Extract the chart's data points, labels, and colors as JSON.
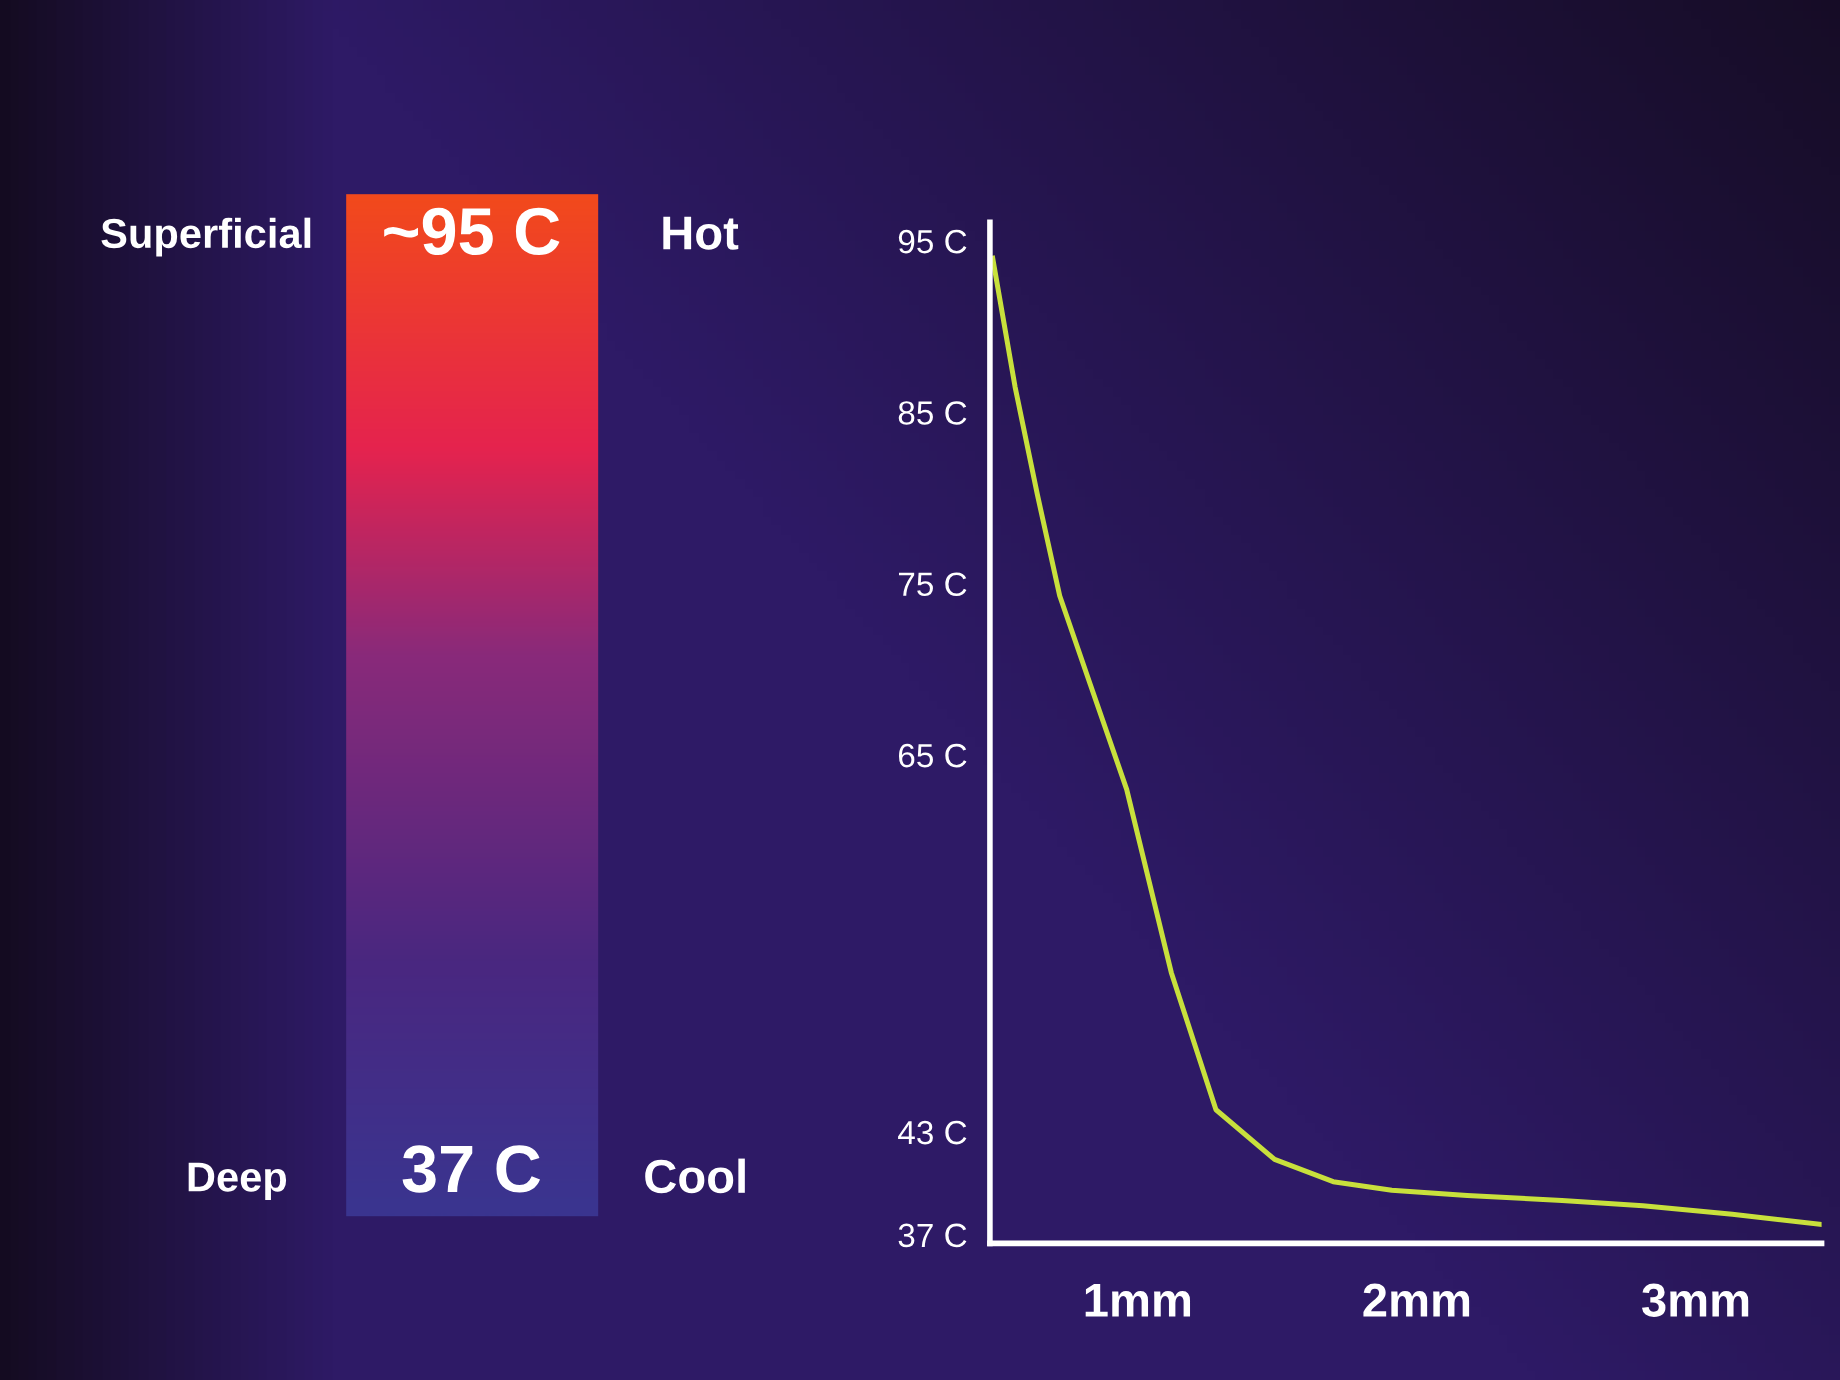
{
  "chart_data": [
    {
      "type": "other",
      "annotations": [
        "Superficial",
        "~95 C",
        "Hot",
        "Deep",
        "37 C",
        "Cool"
      ]
    },
    {
      "type": "line",
      "xlim": [
        0.47,
        3.45
      ],
      "ylim": [
        36.5,
        96.1
      ],
      "xticks": [
        {
          "value": 1,
          "label": "1mm"
        },
        {
          "value": 2,
          "label": "2mm"
        },
        {
          "value": 3,
          "label": "3mm"
        }
      ],
      "yticks": [
        {
          "value": 37,
          "label": "37 C"
        },
        {
          "value": 43,
          "label": "43 C"
        },
        {
          "value": 65,
          "label": "65 C"
        },
        {
          "value": 75,
          "label": "75 C"
        },
        {
          "value": 85,
          "label": "85 C"
        },
        {
          "value": 95,
          "label": "95 C"
        }
      ],
      "grid": false,
      "marker": "none",
      "line_style": "solid",
      "series": [
        {
          "color": "#c8e03c",
          "x": [
            0.48,
            0.56,
            0.64,
            0.72,
            0.83,
            0.96,
            1.12,
            1.28,
            1.49,
            1.7,
            1.91,
            2.18,
            2.52,
            2.81,
            3.13,
            3.45
          ],
          "values": [
            94.0,
            86.5,
            80.2,
            74.3,
            69.1,
            63.0,
            52.3,
            44.3,
            41.4,
            40.1,
            39.6,
            39.3,
            39.0,
            38.7,
            38.2,
            37.6
          ]
        }
      ]
    }
  ]
}
